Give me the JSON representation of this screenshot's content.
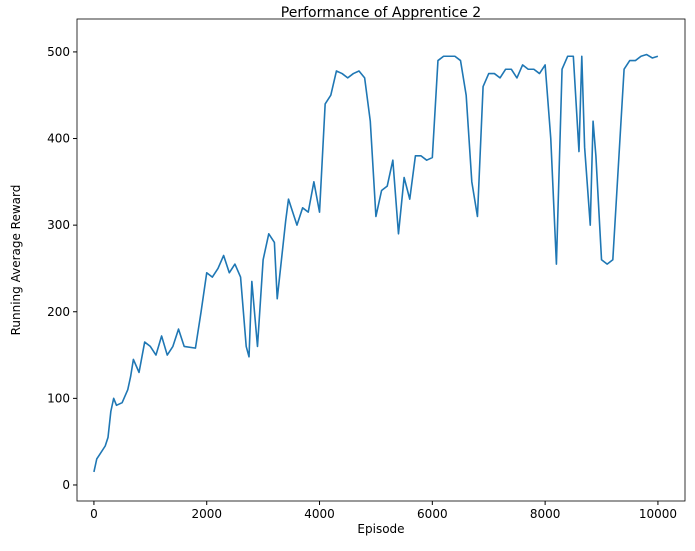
{
  "chart_data": {
    "type": "line",
    "title": "Performance of Apprentice 2",
    "xlabel": "Episode",
    "ylabel": "Running Average Reward",
    "x": [
      0,
      50,
      100,
      200,
      250,
      300,
      350,
      400,
      500,
      600,
      650,
      700,
      800,
      900,
      1000,
      1100,
      1200,
      1300,
      1400,
      1500,
      1600,
      1800,
      1900,
      2000,
      2100,
      2200,
      2300,
      2400,
      2500,
      2600,
      2700,
      2750,
      2800,
      2900,
      3000,
      3100,
      3200,
      3250,
      3400,
      3450,
      3500,
      3600,
      3700,
      3800,
      3900,
      4000,
      4100,
      4200,
      4300,
      4400,
      4500,
      4600,
      4700,
      4800,
      4900,
      5000,
      5100,
      5200,
      5300,
      5400,
      5500,
      5600,
      5700,
      5800,
      5900,
      6000,
      6100,
      6200,
      6300,
      6400,
      6500,
      6600,
      6700,
      6800,
      6900,
      7000,
      7100,
      7200,
      7300,
      7400,
      7500,
      7600,
      7700,
      7800,
      7900,
      8000,
      8100,
      8200,
      8300,
      8400,
      8500,
      8600,
      8650,
      8700,
      8800,
      8850,
      8900,
      9000,
      9100,
      9200,
      9300,
      9400,
      9500,
      9600,
      9700,
      9800,
      9900,
      9999
    ],
    "series": [
      {
        "name": "Running Average Reward",
        "color": "#1f77b4",
        "values": [
          15,
          30,
          35,
          45,
          55,
          85,
          100,
          92,
          95,
          110,
          125,
          145,
          130,
          165,
          160,
          150,
          172,
          150,
          160,
          180,
          160,
          158,
          200,
          245,
          240,
          250,
          265,
          245,
          255,
          240,
          160,
          148,
          235,
          160,
          260,
          290,
          280,
          215,
          305,
          330,
          320,
          300,
          320,
          315,
          350,
          315,
          440,
          450,
          478,
          475,
          470,
          475,
          478,
          470,
          420,
          310,
          340,
          345,
          375,
          290,
          355,
          330,
          380,
          380,
          375,
          378,
          490,
          495,
          495,
          495,
          490,
          450,
          350,
          310,
          460,
          475,
          475,
          470,
          480,
          480,
          470,
          485,
          480,
          480,
          475,
          485,
          400,
          255,
          480,
          495,
          495,
          385,
          495,
          390,
          300,
          420,
          380,
          260,
          255,
          260,
          370,
          480,
          490,
          490,
          495,
          497,
          493,
          495
        ]
      }
    ],
    "xlim": [
      -300,
      10480
    ],
    "ylim": [
      -18.5,
      538
    ],
    "xticks": [
      0,
      2000,
      4000,
      6000,
      8000,
      10000
    ],
    "yticks": [
      0,
      100,
      200,
      300,
      400,
      500
    ]
  }
}
